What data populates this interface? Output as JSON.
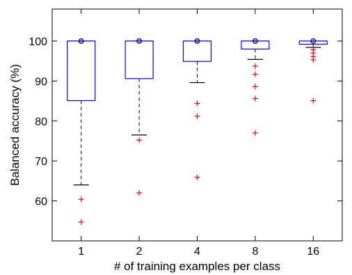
{
  "chart_data": {
    "type": "box",
    "title": "",
    "xlabel": "# of training examples per class",
    "ylabel": "Balanced accuracy (%)",
    "ylim": [
      50,
      108
    ],
    "yticks": [
      60,
      70,
      80,
      90,
      100
    ],
    "grid": false,
    "legend": "none",
    "categories": [
      "1",
      "2",
      "4",
      "8",
      "16"
    ],
    "boxes": [
      {
        "category": "1",
        "whisker_low": 64.0,
        "q1": 85.1,
        "median": 100,
        "q3": 100,
        "whisker_high": 100,
        "outliers": [
          60.4,
          54.7
        ]
      },
      {
        "category": "2",
        "whisker_low": 76.5,
        "q1": 90.6,
        "median": 100,
        "q3": 100,
        "whisker_high": 100,
        "outliers": [
          75.2,
          62.0
        ]
      },
      {
        "category": "4",
        "whisker_low": 89.6,
        "q1": 94.9,
        "median": 100,
        "q3": 100,
        "whisker_high": 100,
        "outliers": [
          84.4,
          81.2,
          65.9
        ]
      },
      {
        "category": "8",
        "whisker_low": 95.4,
        "q1": 98.0,
        "median": 100,
        "q3": 100,
        "whisker_high": 100,
        "outliers": [
          93.7,
          91.7,
          88.6,
          85.6,
          77.0
        ]
      },
      {
        "category": "16",
        "whisker_low": 98.4,
        "q1": 99.2,
        "median": 100,
        "q3": 100,
        "whisker_high": 100,
        "outliers": [
          97.8,
          97.0,
          96.1,
          95.3,
          85.1
        ]
      }
    ],
    "colors": {
      "box": "#0000ff",
      "whisker": "#000000",
      "outlier": "#ff0000",
      "median": "#000080"
    }
  }
}
